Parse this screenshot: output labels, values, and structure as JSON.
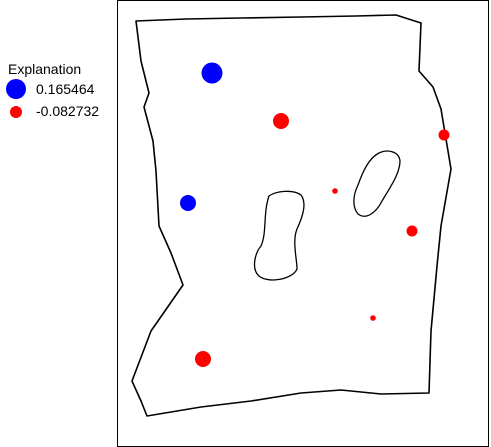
{
  "legend": {
    "title": "Explanation",
    "items": [
      {
        "label": "0.165464",
        "color": "#0000ff",
        "symbol": "large-circle"
      },
      {
        "label": "-0.082732",
        "color": "#ff0000",
        "symbol": "small-circle"
      }
    ]
  },
  "map": {
    "boundary_color": "#000000",
    "fill_color": "#ffffff",
    "points": [
      {
        "value": 0.165464,
        "color": "#0000ff",
        "size": "large"
      },
      {
        "value": -0.082732,
        "color": "#ff0000",
        "size": "medium"
      },
      {
        "value": -0.082732,
        "color": "#ff0000",
        "size": "small"
      },
      {
        "value": -0.082732,
        "color": "#ff0000",
        "size": "tiny"
      },
      {
        "value": 0.165464,
        "color": "#0000ff",
        "size": "medium"
      },
      {
        "value": -0.082732,
        "color": "#ff0000",
        "size": "small"
      },
      {
        "value": -0.082732,
        "color": "#ff0000",
        "size": "tiny"
      },
      {
        "value": -0.082732,
        "color": "#ff0000",
        "size": "medium"
      }
    ]
  }
}
